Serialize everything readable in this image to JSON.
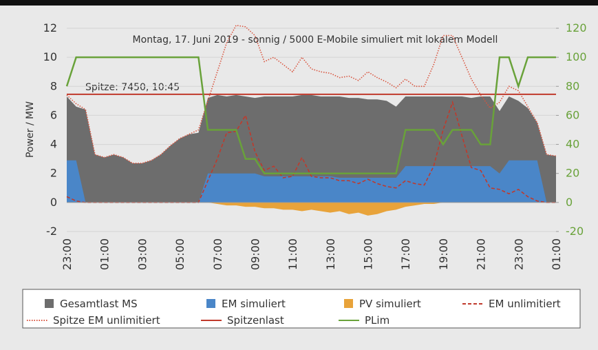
{
  "chart_data": {
    "type": "line",
    "annotations": [
      "Montag, 17. Juni 2019 - sonnig / 5000 E-Mobile simuliert mit lokalem Modell",
      "Spitze: 7450, 10:45"
    ],
    "ylabel": "Power / MW",
    "categories": [
      "23:00",
      null,
      null,
      null,
      "01:00",
      null,
      null,
      null,
      "03:00",
      null,
      null,
      null,
      "05:00",
      null,
      null,
      null,
      "07:00",
      null,
      null,
      null,
      "09:00",
      null,
      null,
      null,
      "11:00",
      null,
      null,
      null,
      "13:00",
      null,
      null,
      null,
      "15:00",
      null,
      null,
      null,
      "17:00",
      null,
      null,
      null,
      "19:00",
      null,
      null,
      null,
      "21:00",
      null,
      null,
      null,
      "23:00",
      null,
      null,
      null,
      "01:00"
    ],
    "ylim": [
      -2,
      12
    ],
    "yticks": [
      -2,
      0,
      2,
      4,
      6,
      8,
      10,
      12
    ],
    "y2lim": [
      -20,
      120
    ],
    "y2ticks": [
      -20,
      0,
      20,
      40,
      60,
      80,
      100,
      120
    ],
    "grid": true,
    "series": [
      {
        "name": "Gesamtlast MS",
        "kind": "area",
        "color": "#6d6d6d",
        "values": [
          7.3,
          6.6,
          6.4,
          3.3,
          3.1,
          3.3,
          3.1,
          2.7,
          2.7,
          2.9,
          3.3,
          3.9,
          4.4,
          4.7,
          4.8,
          7.2,
          7.4,
          7.3,
          7.4,
          7.3,
          7.2,
          7.3,
          7.3,
          7.3,
          7.3,
          7.4,
          7.4,
          7.3,
          7.3,
          7.3,
          7.2,
          7.2,
          7.1,
          7.1,
          7.0,
          6.6,
          7.3,
          7.3,
          7.3,
          7.3,
          7.3,
          7.3,
          7.3,
          7.2,
          7.3,
          7.3,
          6.3,
          7.3,
          7.0,
          6.5,
          5.5,
          3.3,
          3.2
        ]
      },
      {
        "name": "EM simuliert",
        "kind": "area",
        "color": "#4a86c8",
        "values": [
          2.9,
          2.9,
          0,
          0,
          0,
          0,
          0,
          0,
          0,
          0,
          0,
          0,
          0,
          0,
          0,
          2.0,
          2.0,
          2.0,
          2.0,
          2.0,
          2.0,
          1.8,
          1.8,
          1.8,
          1.8,
          1.8,
          1.8,
          1.8,
          1.8,
          1.7,
          1.7,
          1.7,
          1.7,
          1.7,
          1.7,
          1.7,
          2.5,
          2.5,
          2.5,
          2.5,
          2.5,
          2.5,
          2.5,
          2.5,
          2.5,
          2.5,
          2.0,
          2.9,
          2.9,
          2.9,
          2.9,
          0,
          0
        ]
      },
      {
        "name": "PV simuliert",
        "kind": "area",
        "color": "#e8a33a",
        "values": [
          0,
          0,
          0,
          0,
          0,
          0,
          0,
          0,
          0,
          0,
          0,
          0,
          0,
          0,
          0,
          0,
          -0.1,
          -0.2,
          -0.2,
          -0.3,
          -0.3,
          -0.4,
          -0.4,
          -0.5,
          -0.5,
          -0.6,
          -0.5,
          -0.6,
          -0.7,
          -0.6,
          -0.8,
          -0.7,
          -0.9,
          -0.8,
          -0.6,
          -0.5,
          -0.3,
          -0.2,
          -0.1,
          -0.1,
          0,
          0,
          0,
          0,
          0,
          0,
          0,
          0,
          0,
          0,
          0,
          0,
          0
        ]
      },
      {
        "name": "EM unlimitiert",
        "kind": "line",
        "dash": "dashed",
        "color": "#c0392b",
        "values": [
          0.4,
          0.1,
          0,
          0,
          0,
          0,
          0,
          0,
          0,
          0,
          0,
          0,
          0,
          0,
          0,
          1.5,
          3.0,
          4.8,
          4.9,
          6.0,
          3.5,
          2.2,
          2.5,
          1.7,
          1.8,
          3.1,
          1.8,
          1.7,
          1.7,
          1.5,
          1.5,
          1.3,
          1.6,
          1.3,
          1.1,
          1.0,
          1.5,
          1.3,
          1.2,
          2.5,
          5.0,
          6.9,
          4.6,
          2.4,
          2.2,
          1.0,
          0.9,
          0.6,
          0.9,
          0.4,
          0.1,
          0,
          0
        ]
      },
      {
        "name": "Spitze EM unlimitiert",
        "kind": "line",
        "dash": "dotted",
        "color": "#d9533d",
        "values": [
          7.4,
          6.8,
          6.4,
          3.3,
          3.1,
          3.3,
          3.1,
          2.7,
          2.7,
          2.9,
          3.3,
          3.9,
          4.4,
          4.7,
          5.0,
          7.0,
          9.0,
          11.0,
          12.2,
          12.1,
          11.5,
          9.7,
          10.0,
          9.5,
          9.0,
          10.0,
          9.2,
          9.0,
          8.9,
          8.6,
          8.7,
          8.4,
          9.0,
          8.6,
          8.3,
          7.9,
          8.5,
          8.0,
          8.0,
          9.5,
          11.5,
          11.5,
          10.0,
          8.5,
          7.4,
          6.5,
          6.9,
          8.0,
          7.7,
          6.6,
          5.5,
          3.3,
          3.2
        ]
      },
      {
        "name": "Spitzenlast",
        "kind": "line",
        "dash": "solid",
        "color": "#c0392b",
        "values": [
          7.45,
          7.45,
          7.45,
          7.45,
          7.45,
          7.45,
          7.45,
          7.45,
          7.45,
          7.45,
          7.45,
          7.45,
          7.45,
          7.45,
          7.45,
          7.45,
          7.45,
          7.45,
          7.45,
          7.45,
          7.45,
          7.45,
          7.45,
          7.45,
          7.45,
          7.45,
          7.45,
          7.45,
          7.45,
          7.45,
          7.45,
          7.45,
          7.45,
          7.45,
          7.45,
          7.45,
          7.45,
          7.45,
          7.45,
          7.45,
          7.45,
          7.45,
          7.45,
          7.45,
          7.45,
          7.45,
          7.45,
          7.45,
          7.45,
          7.45,
          7.45,
          7.45,
          7.45
        ]
      },
      {
        "name": "PLim",
        "kind": "line",
        "dash": "solid",
        "axis": "y2",
        "color": "#69a23a",
        "values": [
          80,
          100,
          100,
          100,
          100,
          100,
          100,
          100,
          100,
          100,
          100,
          100,
          100,
          100,
          100,
          50,
          50,
          50,
          50,
          30,
          30,
          20,
          20,
          20,
          20,
          20,
          20,
          20,
          20,
          20,
          20,
          20,
          20,
          20,
          20,
          20,
          50,
          50,
          50,
          50,
          40,
          50,
          50,
          50,
          40,
          40,
          100,
          100,
          80,
          100,
          100,
          100,
          100
        ]
      }
    ]
  }
}
